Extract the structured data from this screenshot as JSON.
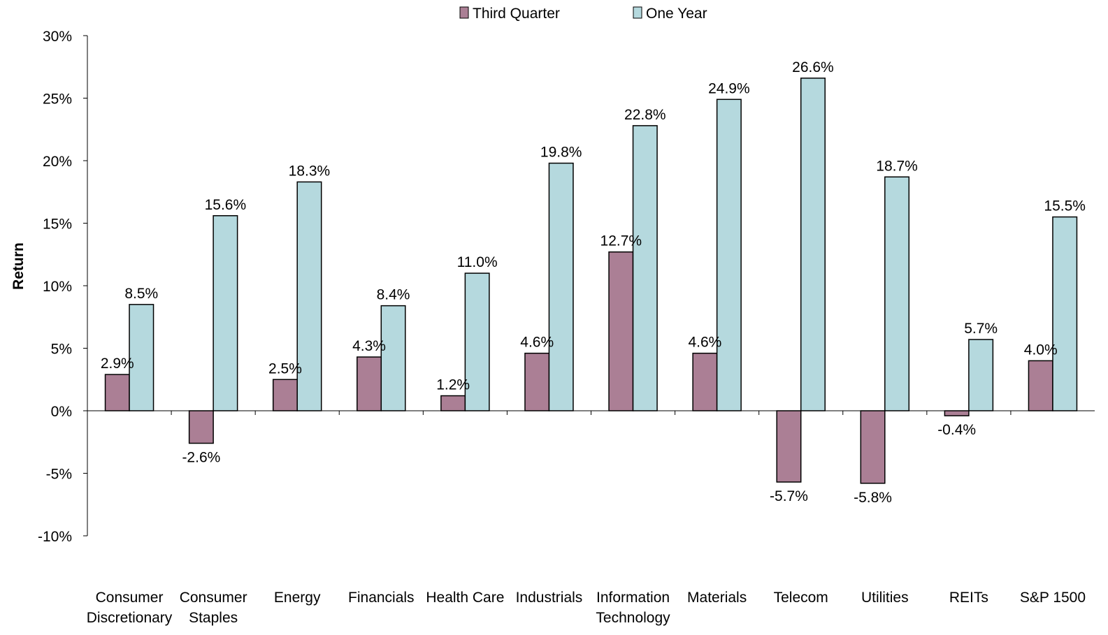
{
  "chart_data": {
    "type": "bar",
    "title": "",
    "xlabel": "",
    "ylabel": "Return",
    "ylim": [
      -10,
      30
    ],
    "yticks": [
      30,
      25,
      20,
      15,
      10,
      5,
      0,
      -5,
      -10
    ],
    "ytick_labels": [
      "30%",
      "25%",
      "20%",
      "15%",
      "10%",
      "5%",
      "0%",
      "-5%",
      "-10%"
    ],
    "grid": false,
    "legend_position": "top-center",
    "categories": [
      [
        "Consumer",
        "Discretionary"
      ],
      [
        "Consumer",
        "Staples"
      ],
      [
        "Energy"
      ],
      [
        "Financials"
      ],
      [
        "Health Care"
      ],
      [
        "Industrials"
      ],
      [
        "Information",
        "Technology"
      ],
      [
        "Materials"
      ],
      [
        "Telecom"
      ],
      [
        "Utilities"
      ],
      [
        "REITs"
      ],
      [
        "S&P 1500"
      ]
    ],
    "series": [
      {
        "name": "Third Quarter",
        "color": "#AB7F95",
        "values": [
          2.9,
          -2.6,
          2.5,
          4.3,
          1.2,
          4.6,
          12.7,
          4.6,
          -5.7,
          -5.8,
          -0.4,
          4.0
        ],
        "labels": [
          "2.9%",
          "-2.6%",
          "2.5%",
          "4.3%",
          "1.2%",
          "4.6%",
          "12.7%",
          "4.6%",
          "-5.7%",
          "-5.8%",
          "-0.4%",
          "4.0%"
        ]
      },
      {
        "name": "One Year",
        "color": "#B5D9DE",
        "values": [
          8.5,
          15.6,
          18.3,
          8.4,
          11.0,
          19.8,
          22.8,
          24.9,
          26.6,
          18.7,
          5.7,
          15.5
        ],
        "labels": [
          "8.5%",
          "15.6%",
          "18.3%",
          "8.4%",
          "11.0%",
          "19.8%",
          "22.8%",
          "24.9%",
          "26.6%",
          "18.7%",
          "5.7%",
          "15.5%"
        ]
      }
    ]
  }
}
